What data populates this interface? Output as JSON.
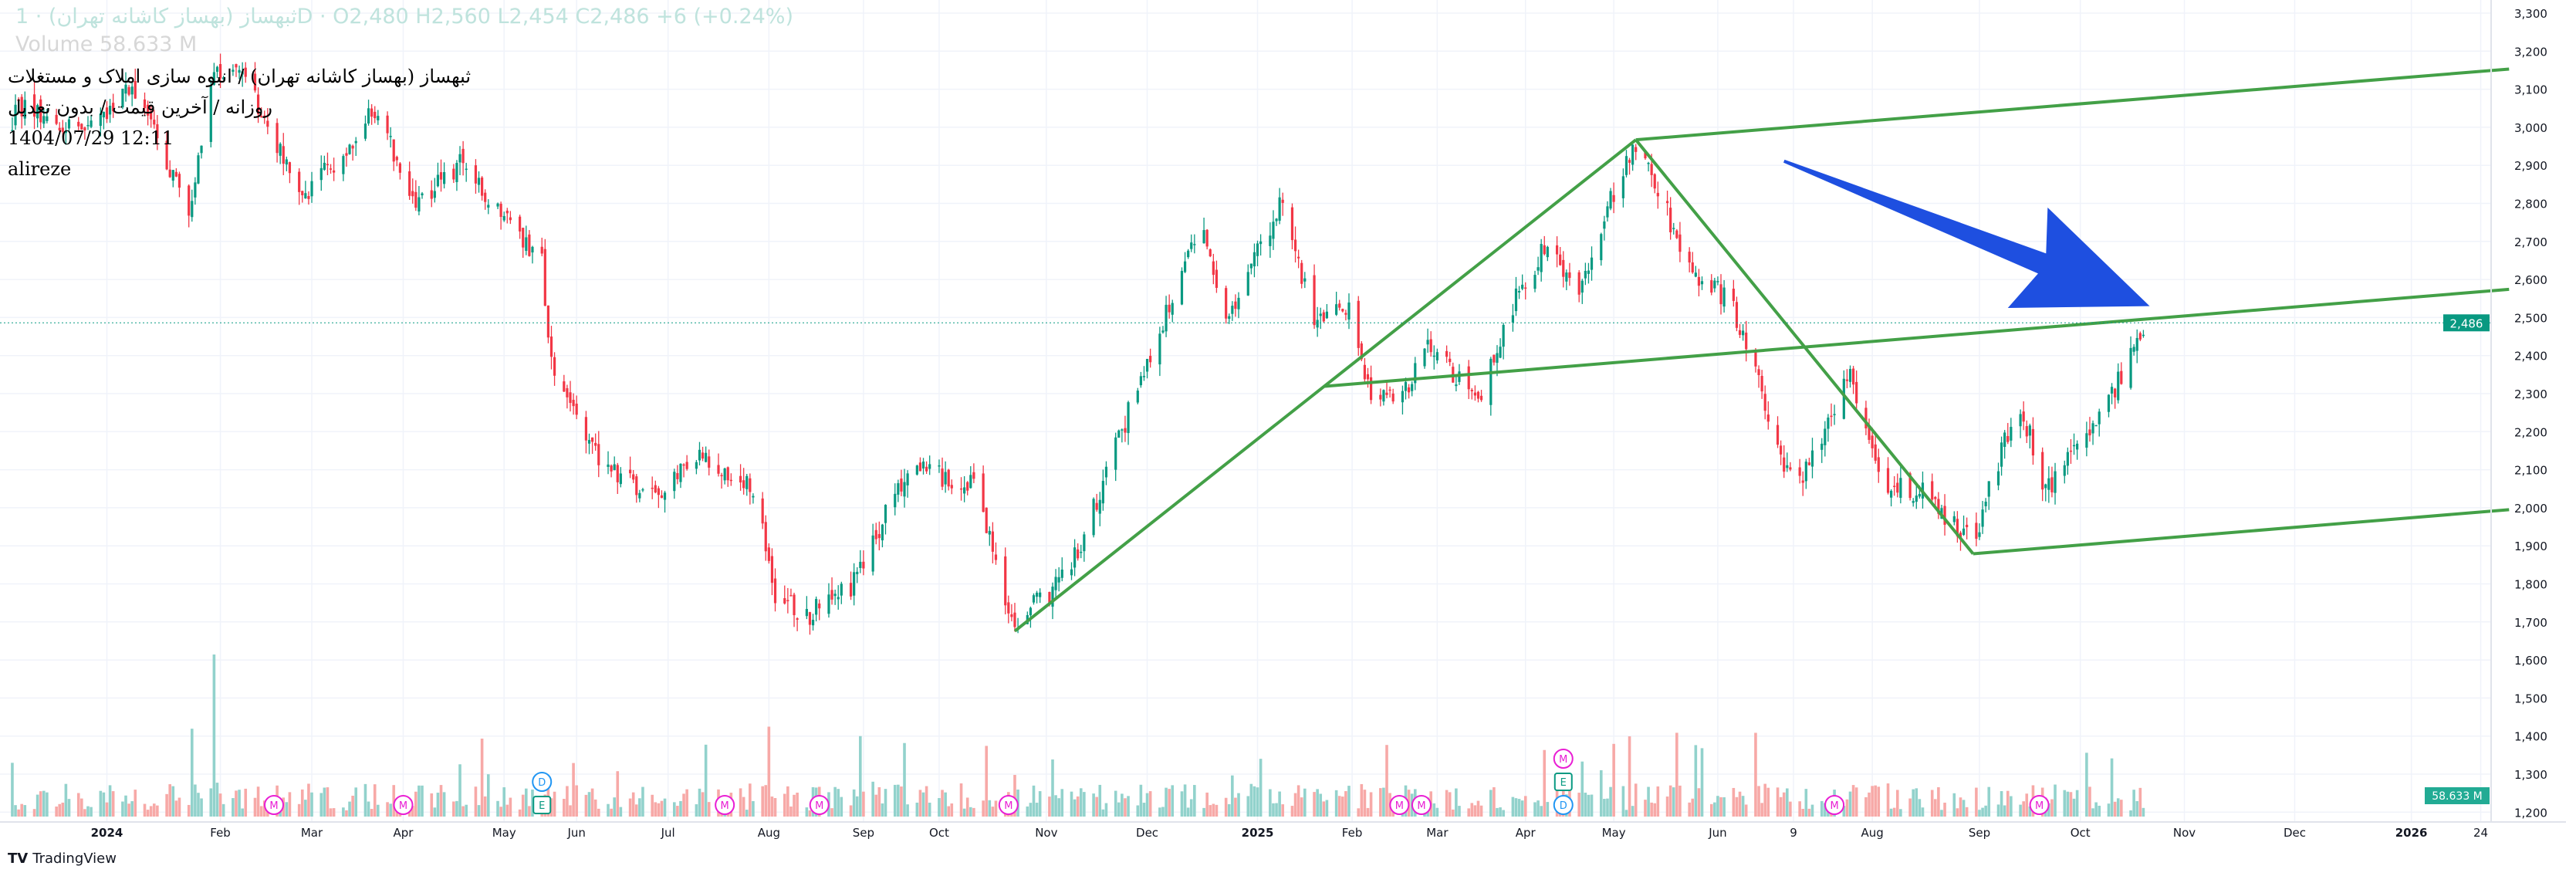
{
  "legend": {
    "symbol_line": "ثبهساز (بهساز کاشانه تهران) · 1D · O2,480 H2,560 L2,454 C2,486 +6 (+0.24%)",
    "volume_line": "Volume 58.633 M",
    "title": "ثبهساز (بهساز کاشانه تهران) / انبوه سازی املاک و مستغلات",
    "subtitle": "روزانه / آخرین قیمت / بدون تعدیل",
    "datetime": "1404/07/29 12:11",
    "author": "alireze"
  },
  "branding": {
    "logo": "TV",
    "name": "TradingView"
  },
  "chart_data": {
    "type": "candlestick",
    "x_unit": "days since 2024-01-01 (approx.)",
    "ylim": [
      1200,
      3300
    ],
    "y_ticks": [
      "3,300",
      "3,200",
      "3,100",
      "3,000",
      "2,900",
      "2,800",
      "2,700",
      "2,600",
      "2,500",
      "2,400",
      "2,300",
      "2,200",
      "2,100",
      "2,000",
      "1,900",
      "1,800",
      "1,700",
      "1,600",
      "1,500",
      "1,400",
      "1,300",
      "1,200"
    ],
    "y_tick_values": [
      3300,
      3200,
      3100,
      3000,
      2900,
      2800,
      2700,
      2600,
      2500,
      2400,
      2300,
      2200,
      2100,
      2000,
      1900,
      1800,
      1700,
      1600,
      1500,
      1400,
      1300,
      1200
    ],
    "x_ticks": [
      {
        "label": "2024",
        "day": 0,
        "bold": true
      },
      {
        "label": "Feb",
        "day": 36
      },
      {
        "label": "Mar",
        "day": 65
      },
      {
        "label": "Apr",
        "day": 94
      },
      {
        "label": "May",
        "day": 126
      },
      {
        "label": "Jun",
        "day": 149
      },
      {
        "label": "Jul",
        "day": 178
      },
      {
        "label": "Aug",
        "day": 210
      },
      {
        "label": "Sep",
        "day": 240
      },
      {
        "label": "Oct",
        "day": 264
      },
      {
        "label": "Nov",
        "day": 298
      },
      {
        "label": "Dec",
        "day": 330
      },
      {
        "label": "2025",
        "day": 365,
        "bold": true
      },
      {
        "label": "Feb",
        "day": 395
      },
      {
        "label": "Mar",
        "day": 422
      },
      {
        "label": "Apr",
        "day": 450
      },
      {
        "label": "May",
        "day": 478
      },
      {
        "label": "Jun",
        "day": 511
      },
      {
        "label": "9",
        "day": 535
      },
      {
        "label": "Aug",
        "day": 560
      },
      {
        "label": "Sep",
        "day": 594
      },
      {
        "label": "Oct",
        "day": 626
      },
      {
        "label": "Nov",
        "day": 659
      },
      {
        "label": "Dec",
        "day": 694
      },
      {
        "label": "2026",
        "day": 731,
        "bold": true
      },
      {
        "label": "24",
        "day": 753
      }
    ],
    "price_path": [
      [
        -31,
        2980
      ],
      [
        -29,
        3054
      ],
      [
        -5,
        2989
      ],
      [
        8,
        3118
      ],
      [
        26,
        2773
      ],
      [
        34,
        3162
      ],
      [
        44,
        3118
      ],
      [
        63,
        2816
      ],
      [
        86,
        3054
      ],
      [
        96,
        2794
      ],
      [
        112,
        2902
      ],
      [
        138,
        2643
      ],
      [
        141,
        2380
      ],
      [
        156,
        2125
      ],
      [
        177,
        2017
      ],
      [
        185,
        2146
      ],
      [
        206,
        2038
      ],
      [
        211,
        1779
      ],
      [
        222,
        1714
      ],
      [
        237,
        1801
      ],
      [
        250,
        2038
      ],
      [
        255,
        2103
      ],
      [
        276,
        2060
      ],
      [
        287,
        1692
      ],
      [
        305,
        1822
      ],
      [
        331,
        2406
      ],
      [
        347,
        2730
      ],
      [
        355,
        2492
      ],
      [
        373,
        2816
      ],
      [
        383,
        2470
      ],
      [
        394,
        2535
      ],
      [
        401,
        2298
      ],
      [
        409,
        2276
      ],
      [
        420,
        2427
      ],
      [
        435,
        2276
      ],
      [
        446,
        2535
      ],
      [
        456,
        2686
      ],
      [
        467,
        2557
      ],
      [
        480,
        2881
      ],
      [
        485,
        2946
      ],
      [
        493,
        2816
      ],
      [
        503,
        2600
      ],
      [
        514,
        2557
      ],
      [
        521,
        2406
      ],
      [
        532,
        2125
      ],
      [
        537,
        2060
      ],
      [
        553,
        2362
      ],
      [
        563,
        2060
      ],
      [
        576,
        2038
      ],
      [
        592,
        1909
      ],
      [
        600,
        2125
      ],
      [
        607,
        2276
      ],
      [
        615,
        2038
      ],
      [
        628,
        2190
      ],
      [
        636,
        2298
      ],
      [
        644,
        2427
      ],
      [
        648,
        2486
      ]
    ],
    "last_price": {
      "value": 2486,
      "label": "2,486"
    },
    "last_volume": {
      "label": "58.633 M"
    },
    "ohlc_last": {
      "open": 2480,
      "high": 2560,
      "low": 2454,
      "close": 2486,
      "change": 6,
      "change_pct": 0.24
    },
    "trendlines": [
      {
        "from": [
          288,
          1676
        ],
        "to": [
          485,
          2967
        ],
        "color": "#43a047"
      },
      {
        "from": [
          485,
          2967
        ],
        "to": [
          762,
          3153
        ],
        "color": "#43a047"
      },
      {
        "from": [
          485,
          2967
        ],
        "to": [
          592,
          1879
        ],
        "color": "#43a047"
      },
      {
        "from": [
          386,
          2319
        ],
        "to": [
          762,
          2574
        ],
        "color": "#43a047"
      },
      {
        "from": [
          592,
          1879
        ],
        "to": [
          762,
          1995
        ],
        "color": "#43a047"
      }
    ],
    "arrow": {
      "from": [
        532,
        2911
      ],
      "to": [
        648,
        2530
      ],
      "color": "#1e4fe0"
    },
    "events": [
      {
        "label": "M",
        "day": 53,
        "kind": "dividend"
      },
      {
        "label": "M",
        "day": 94,
        "kind": "dividend"
      },
      {
        "label": "D",
        "day": 138,
        "kind": "split",
        "row": 1
      },
      {
        "label": "E",
        "day": 138,
        "kind": "earnings"
      },
      {
        "label": "M",
        "day": 196,
        "kind": "dividend"
      },
      {
        "label": "M",
        "day": 226,
        "kind": "dividend"
      },
      {
        "label": "M",
        "day": 286,
        "kind": "dividend"
      },
      {
        "label": "M",
        "day": 410,
        "kind": "dividend"
      },
      {
        "label": "M",
        "day": 417,
        "kind": "dividend"
      },
      {
        "label": "M",
        "day": 462,
        "kind": "dividend",
        "row": 2
      },
      {
        "label": "E",
        "day": 462,
        "kind": "earnings",
        "row": 1
      },
      {
        "label": "D",
        "day": 462,
        "kind": "split"
      },
      {
        "label": "M",
        "day": 548,
        "kind": "dividend"
      },
      {
        "label": "M",
        "day": 613,
        "kind": "dividend"
      }
    ],
    "colors": {
      "up": "#089981",
      "down": "#f23645",
      "vol_up": "#92d2cc",
      "vol_down": "#f7a9a7",
      "grid": "#f0f3fa"
    }
  }
}
